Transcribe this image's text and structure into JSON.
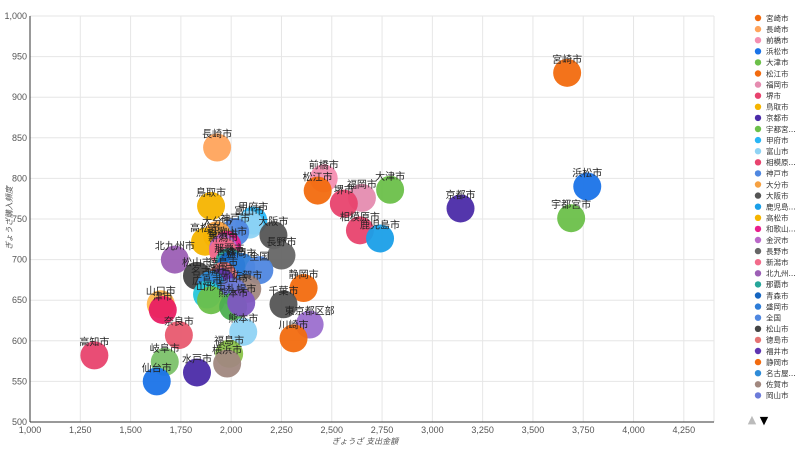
{
  "chart_data": {
    "type": "scatter",
    "xlabel": "ぎょうざ 支出金額",
    "ylabel": "ぎょうざ購入頻度",
    "xlim": [
      1000,
      4400
    ],
    "ylim": [
      500,
      1000
    ],
    "x_ticks": [
      "1,000",
      "1,250",
      "1,500",
      "1,750",
      "2,000",
      "2,250",
      "2,500",
      "2,750",
      "3,000",
      "3,250",
      "3,500",
      "3,750",
      "4,000",
      "4,250"
    ],
    "y_ticks": [
      "500",
      "550",
      "600",
      "650",
      "700",
      "750",
      "800",
      "850",
      "900",
      "950",
      "1,000"
    ],
    "grid": true,
    "legend_position": "right",
    "legend_pager": {
      "up": "▲",
      "down": "▼"
    },
    "points": [
      {
        "label": "宮崎市",
        "x": 3670,
        "y": 930,
        "color": "#f26b0f"
      },
      {
        "label": "長崎市",
        "x": 1930,
        "y": 838,
        "color": "#ffa45c"
      },
      {
        "label": "前橋市",
        "x": 2460,
        "y": 800,
        "color": "#f48fb1"
      },
      {
        "label": "浜松市",
        "x": 3770,
        "y": 790,
        "color": "#1a73e8"
      },
      {
        "label": "大津市",
        "x": 2790,
        "y": 786,
        "color": "#6cc04a"
      },
      {
        "label": "松江市",
        "x": 2430,
        "y": 785,
        "color": "#f26b0f"
      },
      {
        "label": "福岡市",
        "x": 2650,
        "y": 776,
        "color": "#e58cb0"
      },
      {
        "label": "堺市",
        "x": 2560,
        "y": 769,
        "color": "#e8436e"
      },
      {
        "label": "鳥取市",
        "x": 1900,
        "y": 766,
        "color": "#f5b400"
      },
      {
        "label": "京都市",
        "x": 3140,
        "y": 763,
        "color": "#4b2ba8"
      },
      {
        "label": "宇都宮市",
        "x": 3690,
        "y": 751,
        "color": "#6cc04a"
      },
      {
        "label": "甲府市",
        "x": 2110,
        "y": 748,
        "color": "#29b6f6"
      },
      {
        "label": "富山市",
        "x": 2090,
        "y": 743,
        "color": "#8fd3f4"
      },
      {
        "label": "相模原市",
        "x": 2640,
        "y": 736,
        "color": "#e8436e"
      },
      {
        "label": "神戸市",
        "x": 2020,
        "y": 734,
        "color": "#4f87e0"
      },
      {
        "label": "大分市",
        "x": 1930,
        "y": 730,
        "color": "#f6a142"
      },
      {
        "label": "大阪市",
        "x": 2210,
        "y": 730,
        "color": "#555555"
      },
      {
        "label": "鹿児島市",
        "x": 2740,
        "y": 726,
        "color": "#1a9fe8"
      },
      {
        "label": "高松市",
        "x": 1870,
        "y": 722,
        "color": "#f5b400"
      },
      {
        "label": "和歌山市",
        "x": 1980,
        "y": 718,
        "color": "#e91e8c"
      },
      {
        "label": "金沢市",
        "x": 1960,
        "y": 714,
        "color": "#ba68c8"
      },
      {
        "label": "長野市",
        "x": 2250,
        "y": 705,
        "color": "#666666"
      },
      {
        "label": "新潟市",
        "x": 1960,
        "y": 710,
        "color": "#f26b8a"
      },
      {
        "label": "北九州市",
        "x": 1720,
        "y": 700,
        "color": "#9c5fb5"
      },
      {
        "label": "那覇市",
        "x": 1990,
        "y": 697,
        "color": "#26a69a"
      },
      {
        "label": "青森市",
        "x": 2000,
        "y": 693,
        "color": "#1565c0"
      },
      {
        "label": "盛岡市",
        "x": 2050,
        "y": 691,
        "color": "#2e7dd8"
      },
      {
        "label": "全国",
        "x": 2140,
        "y": 687,
        "color": "#4f87e0"
      },
      {
        "label": "松山市",
        "x": 1830,
        "y": 680,
        "color": "#444444"
      },
      {
        "label": "徳島市",
        "x": 1960,
        "y": 680,
        "color": "#e57373"
      },
      {
        "label": "福井市",
        "x": 1950,
        "y": 672,
        "color": "#5e35b1"
      },
      {
        "label": "静岡市",
        "x": 2360,
        "y": 665,
        "color": "#f26b0f"
      },
      {
        "label": "名古屋市",
        "x": 1900,
        "y": 669,
        "color": "#2e8bd8"
      },
      {
        "label": "佐賀市",
        "x": 2080,
        "y": 664,
        "color": "#a1887f"
      },
      {
        "label": "岡山市",
        "x": 2010,
        "y": 660,
        "color": "#6c7bd9"
      },
      {
        "label": "広島市",
        "x": 1880,
        "y": 657,
        "color": "#26c6da"
      },
      {
        "label": "山口市",
        "x": 1650,
        "y": 645,
        "color": "#ffb74d"
      },
      {
        "label": "津市",
        "x": 1660,
        "y": 638,
        "color": "#e91e63"
      },
      {
        "label": "千葉市",
        "x": 2260,
        "y": 645,
        "color": "#555555"
      },
      {
        "label": "山形市",
        "x": 1900,
        "y": 650,
        "color": "#6cc04a"
      },
      {
        "label": "熊本市",
        "x": 2010,
        "y": 642,
        "color": "#4caf50"
      },
      {
        "label": "札幌市",
        "x": 2050,
        "y": 647,
        "color": "#7e57c2"
      },
      {
        "label": "東京都区部",
        "x": 2390,
        "y": 620,
        "color": "#9c6fcf"
      },
      {
        "label": "奈良市",
        "x": 1740,
        "y": 607,
        "color": "#e85a6f"
      },
      {
        "label": "熊本市",
        "x": 2060,
        "y": 611,
        "color": "#8fd3f4"
      },
      {
        "label": "川崎市",
        "x": 2310,
        "y": 603,
        "color": "#f26b0f"
      },
      {
        "label": "高知市",
        "x": 1320,
        "y": 582,
        "color": "#e8436e"
      },
      {
        "label": "福島市",
        "x": 1990,
        "y": 584,
        "color": "#8bc34a"
      },
      {
        "label": "岐阜市",
        "x": 1670,
        "y": 574,
        "color": "#7cc26a"
      },
      {
        "label": "横浜市",
        "x": 1980,
        "y": 572,
        "color": "#a1887f"
      },
      {
        "label": "水戸市",
        "x": 1830,
        "y": 561,
        "color": "#4b2ba8"
      },
      {
        "label": "仙台市",
        "x": 1630,
        "y": 550,
        "color": "#1a73e8"
      }
    ],
    "legend": [
      {
        "label": "宮崎市",
        "color": "#f26b0f"
      },
      {
        "label": "長崎市",
        "color": "#ffa45c"
      },
      {
        "label": "前橋市",
        "color": "#f48fb1"
      },
      {
        "label": "浜松市",
        "color": "#1a73e8"
      },
      {
        "label": "大津市",
        "color": "#6cc04a"
      },
      {
        "label": "松江市",
        "color": "#f26b0f"
      },
      {
        "label": "福岡市",
        "color": "#e58cb0"
      },
      {
        "label": "堺市",
        "color": "#e8436e"
      },
      {
        "label": "鳥取市",
        "color": "#f5b400"
      },
      {
        "label": "京都市",
        "color": "#4b2ba8"
      },
      {
        "label": "宇都宮...",
        "color": "#6cc04a"
      },
      {
        "label": "甲府市",
        "color": "#29b6f6"
      },
      {
        "label": "富山市",
        "color": "#8fd3f4"
      },
      {
        "label": "相模原...",
        "color": "#e8436e"
      },
      {
        "label": "神戸市",
        "color": "#4f87e0"
      },
      {
        "label": "大分市",
        "color": "#f6a142"
      },
      {
        "label": "大阪市",
        "color": "#555555"
      },
      {
        "label": "鹿児島...",
        "color": "#1a9fe8"
      },
      {
        "label": "高松市",
        "color": "#f5b400"
      },
      {
        "label": "和歌山...",
        "color": "#e91e8c"
      },
      {
        "label": "金沢市",
        "color": "#ba68c8"
      },
      {
        "label": "長野市",
        "color": "#666666"
      },
      {
        "label": "新潟市",
        "color": "#f26b8a"
      },
      {
        "label": "北九州...",
        "color": "#9c5fb5"
      },
      {
        "label": "那覇市",
        "color": "#26a69a"
      },
      {
        "label": "青森市",
        "color": "#1565c0"
      },
      {
        "label": "盛岡市",
        "color": "#2e7dd8"
      },
      {
        "label": "全国",
        "color": "#4f87e0"
      },
      {
        "label": "松山市",
        "color": "#444444"
      },
      {
        "label": "徳島市",
        "color": "#e57373"
      },
      {
        "label": "福井市",
        "color": "#5e35b1"
      },
      {
        "label": "静岡市",
        "color": "#f26b0f"
      },
      {
        "label": "名古屋...",
        "color": "#2e8bd8"
      },
      {
        "label": "佐賀市",
        "color": "#a1887f"
      },
      {
        "label": "岡山市",
        "color": "#6c7bd9"
      }
    ]
  }
}
